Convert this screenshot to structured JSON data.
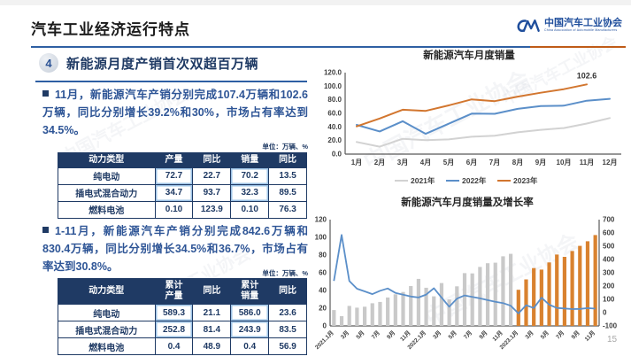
{
  "header": {
    "title": "汽车工业经济运行特点",
    "logo": {
      "org_cn": "中国汽车工业协会",
      "org_en": "China Association of Automobile Manufacturers"
    }
  },
  "section": {
    "number": "4",
    "title": "新能源月度产销首次双超百万辆"
  },
  "bullets": [
    {
      "text": "11月，新能源汽车产销分别完成107.4万辆和102.6万辆，同比分别增长39.2%和30%，市场占有率达到34.5%。"
    },
    {
      "text": "1-11月，新能源汽车产销分别完成842.6万辆和830.4万辆，同比分别增长34.5%和36.7%，市场占有率达到30.8%。"
    }
  ],
  "unit_label": "单位：万辆、%",
  "tables": [
    {
      "headers": [
        "动力类型",
        "产量",
        "同比",
        "销量",
        "同比"
      ],
      "rows": [
        [
          "纯电动",
          "72.7",
          "22.7",
          "70.2",
          "13.5"
        ],
        [
          "插电式混合动力",
          "34.7",
          "93.7",
          "32.3",
          "89.5"
        ],
        [
          "燃料电池",
          "0.10",
          "123.9",
          "0.10",
          "76.3"
        ]
      ],
      "highlight_cells": [
        [
          0,
          1
        ],
        [
          0,
          3
        ],
        [
          1,
          1
        ],
        [
          1,
          3
        ]
      ]
    },
    {
      "headers": [
        "动力类型",
        "累计\n产量",
        "同比",
        "累计\n销量",
        "同比"
      ],
      "rows": [
        [
          "纯电动",
          "589.3",
          "21.1",
          "586.0",
          "23.6"
        ],
        [
          "插电式混合动力",
          "252.8",
          "81.4",
          "243.9",
          "83.5"
        ],
        [
          "燃料电池",
          "0.4",
          "48.9",
          "0.4",
          "56.9"
        ]
      ],
      "highlight_cells": [
        [
          0,
          1
        ],
        [
          0,
          3
        ],
        [
          1,
          1
        ],
        [
          1,
          3
        ]
      ]
    }
  ],
  "page_number": "15",
  "colors": {
    "accent_blue": "#2E5FA3",
    "accent_orange": "#BF5B17",
    "navy": "#1F3A64",
    "text_blue": "#2E5596",
    "line_2021": "#D2D2D2",
    "line_2022": "#5B8FC9",
    "line_2023": "#D2762F",
    "bar_gray": "#C9C9C9",
    "bar_orange": "#D9822F",
    "growth_line": "#5B8FC9"
  },
  "chart_data": [
    {
      "type": "line",
      "title": "新能源汽车月度销量",
      "categories": [
        "1月",
        "2月",
        "3月",
        "4月",
        "5月",
        "6月",
        "7月",
        "8月",
        "9月",
        "10月",
        "11月",
        "12月"
      ],
      "series": [
        {
          "name": "2021年",
          "color": "#D2D2D2",
          "values": [
            17.9,
            11.0,
            22.6,
            20.6,
            21.7,
            25.6,
            27.1,
            32.1,
            35.7,
            38.3,
            45.0,
            53.1
          ]
        },
        {
          "name": "2022年",
          "color": "#5B8FC9",
          "values": [
            43.1,
            33.4,
            48.4,
            29.9,
            44.7,
            59.6,
            59.3,
            66.6,
            70.8,
            71.4,
            78.6,
            81.4
          ]
        },
        {
          "name": "2023年",
          "color": "#D2762F",
          "values": [
            40.8,
            52.5,
            65.3,
            63.6,
            71.7,
            80.6,
            78.0,
            84.6,
            90.4,
            95.6,
            102.6,
            null
          ]
        }
      ],
      "annotation": {
        "text": "102.6",
        "series_index": 2,
        "point_index": 10
      },
      "ylim": [
        0,
        120
      ],
      "ytick_step": 20,
      "ytick_decimals": 1,
      "grid": false,
      "legend_position": "bottom"
    },
    {
      "type": "combo",
      "title": "新能源汽车月度销量及增长率",
      "categories": [
        "2021.1月",
        "2月",
        "3月",
        "4月",
        "5月",
        "6月",
        "7月",
        "8月",
        "9月",
        "10月",
        "11月",
        "12月",
        "2022.1月",
        "2月",
        "3月",
        "4月",
        "5月",
        "6月",
        "7月",
        "8月",
        "9月",
        "10月",
        "11月",
        "12月",
        "2023.1月",
        "2月",
        "3月",
        "4月",
        "5月",
        "6月",
        "7月",
        "8月",
        "9月",
        "10月",
        "11月"
      ],
      "bars": {
        "name": "月度销量",
        "values": [
          17.9,
          11.0,
          22.6,
          20.6,
          21.7,
          25.6,
          27.1,
          32.1,
          35.7,
          38.3,
          45.0,
          53.1,
          43.1,
          33.4,
          48.4,
          29.9,
          44.7,
          59.6,
          59.3,
          66.6,
          70.8,
          71.4,
          78.6,
          81.4,
          40.8,
          52.5,
          65.3,
          63.6,
          71.7,
          80.6,
          78.0,
          84.6,
          90.4,
          95.6,
          102.6
        ],
        "color_2021_2022": "#C9C9C9",
        "color_2023": "#D9822F",
        "orange_from_index": 24
      },
      "line": {
        "name": "增长率",
        "color": "#5B8FC9",
        "values": [
          238.5,
          584.7,
          238.9,
          180.3,
          159.7,
          139.3,
          164.4,
          181.9,
          148.4,
          134.9,
          121.1,
          113.9,
          135.8,
          184.3,
          114.1,
          44.6,
          105.2,
          129.2,
          118.9,
          107.3,
          93.9,
          81.7,
          72.3,
          51.8,
          -6.3,
          55.9,
          34.8,
          112.7,
          60.2,
          35.2,
          31.6,
          27.0,
          27.7,
          33.9,
          30.0
        ]
      },
      "ylim_left": [
        0,
        120
      ],
      "ytick_step_left": 20,
      "ylim_right": [
        -100,
        700
      ],
      "ytick_step_right": 100,
      "xtick_every": 2,
      "grid": false
    }
  ],
  "watermark_text": "中国汽车工业协会"
}
